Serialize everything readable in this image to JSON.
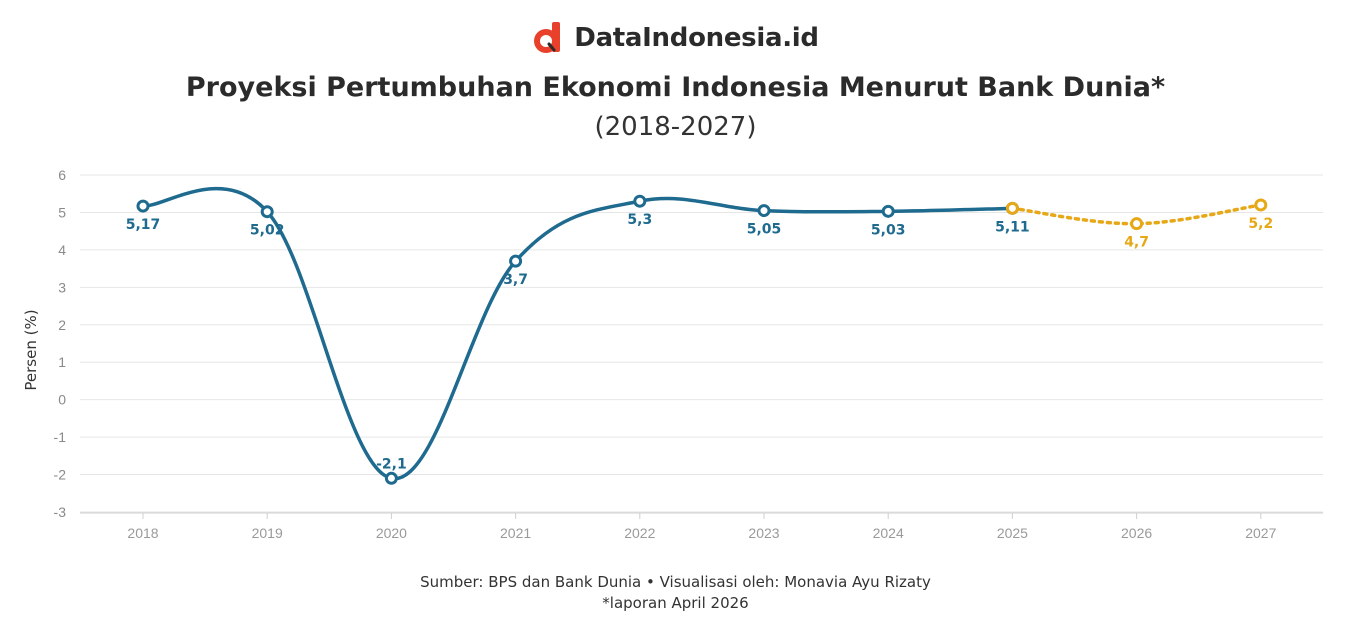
{
  "brand": {
    "name": "DataIndonesia.id",
    "logo_icon": "data-indonesia-logo-icon",
    "logo_color": "#e8402b"
  },
  "title": "Proyeksi Pertumbuhan Ekonomi Indonesia Menurut Bank Dunia*",
  "subtitle": "(2018-2027)",
  "footer": {
    "source": "Sumber: BPS dan Bank Dunia • Visualisasi oleh: Monavia Ayu Rizaty",
    "note": "*laporan April 2026"
  },
  "chart_data": {
    "type": "line",
    "title": "Proyeksi Pertumbuhan Ekonomi Indonesia Menurut Bank Dunia*",
    "subtitle": "(2018-2027)",
    "xlabel": "",
    "ylabel": "Persen (%)",
    "x": [
      "2018",
      "2019",
      "2020",
      "2021",
      "2022",
      "2023",
      "2024",
      "2025",
      "2026",
      "2027"
    ],
    "ylim": [
      -3,
      6
    ],
    "yticks": [
      6,
      5,
      4,
      3,
      2,
      1,
      0,
      -1,
      -2,
      -3
    ],
    "yticklabels": [
      "6",
      "5",
      "4",
      "3",
      "2",
      "1",
      "0",
      "-1",
      "-2",
      "-3"
    ],
    "grid": true,
    "legend": "none",
    "series": [
      {
        "style": "solid",
        "color": "#1f6a8f",
        "x": [
          "2018",
          "2019",
          "2020",
          "2021",
          "2022",
          "2023",
          "2024",
          "2025"
        ],
        "values": [
          5.17,
          5.02,
          -2.1,
          3.7,
          5.3,
          5.05,
          5.03,
          5.11
        ],
        "labels": [
          "5,17",
          "5,02",
          "-2,1",
          "3,7",
          "5,3",
          "5,05",
          "5,03",
          "5,11"
        ]
      },
      {
        "style": "dotted",
        "color": "#e6a817",
        "x": [
          "2025",
          "2026",
          "2027"
        ],
        "values": [
          5.11,
          4.7,
          5.2
        ],
        "labels": [
          "",
          "4,7",
          "5,2"
        ]
      }
    ]
  }
}
